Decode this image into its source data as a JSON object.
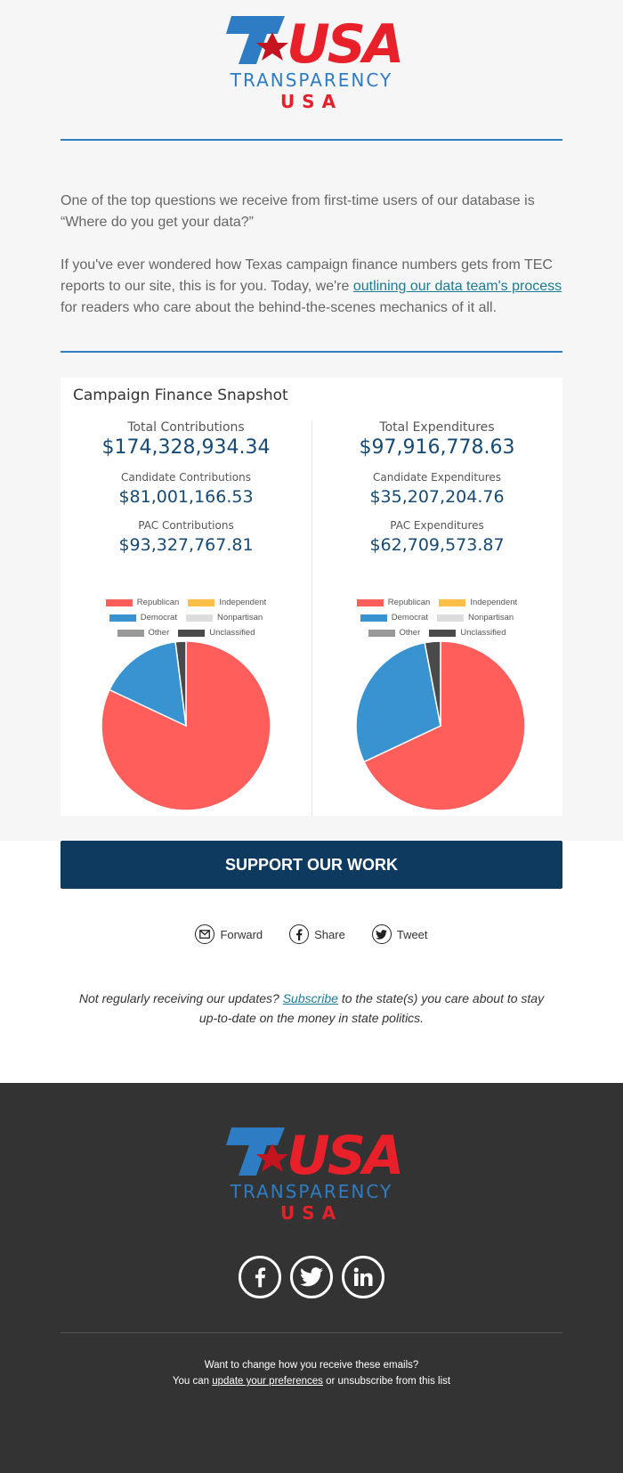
{
  "brand": {
    "line1": "TRANSPARENCY",
    "line2": "USA",
    "colors": {
      "blue": "#2e7cc4",
      "red": "#e8202a",
      "navy": "#0f3a5f"
    }
  },
  "intro": {
    "para1": "One of the top questions we receive from first-time users of our database is “Where do you get your data?”",
    "para2_before": "If you've ever wondered how Texas campaign finance numbers gets from TEC reports to our site, this is for you. Today, we're ",
    "para2_link": "outlining our data team's process",
    "para2_after": " for readers who care about the behind-the-scenes mechanics of it all."
  },
  "snapshot": {
    "title": "Campaign Finance Snapshot",
    "left": {
      "total_label": "Total Contributions",
      "total_value": "$174,328,934.34",
      "candidate_label": "Candidate Contributions",
      "candidate_value": "$81,001,166.53",
      "pac_label": "PAC Contributions",
      "pac_value": "$93,327,767.81"
    },
    "right": {
      "total_label": "Total Expenditures",
      "total_value": "$97,916,778.63",
      "candidate_label": "Candidate Expenditures",
      "candidate_value": "$35,207,204.76",
      "pac_label": "PAC Expenditures",
      "pac_value": "$62,709,573.87"
    },
    "legend": {
      "republican": "Republican",
      "independent": "Independent",
      "democrat": "Democrat",
      "nonpartisan": "Nonpartisan",
      "other": "Other",
      "unclassified": "Unclassified"
    },
    "legend_colors": {
      "republican": "#ff5e5b",
      "independent": "#ffbf47",
      "democrat": "#3a93d1",
      "nonpartisan": "#dddddd",
      "other": "#999999",
      "unclassified": "#4a4a4a"
    }
  },
  "chart_data": [
    {
      "type": "pie",
      "categories": [
        "Republican",
        "Democrat",
        "Unclassified"
      ],
      "values": [
        82,
        16,
        2
      ]
    },
    {
      "type": "pie",
      "categories": [
        "Republican",
        "Democrat",
        "Unclassified"
      ],
      "values": [
        68,
        29,
        3
      ]
    }
  ],
  "cta": {
    "support_label": "SUPPORT OUR WORK"
  },
  "share": {
    "forward": "Forward",
    "share": "Share",
    "tweet": "Tweet"
  },
  "subscribe": {
    "before": "Not regularly receiving our updates? ",
    "link": "Subscribe",
    "after": " to the state(s) you care about to stay up-to-date on the money in state politics."
  },
  "footer": {
    "line1": "Want to change how you receive these emails?",
    "line2_before": "You can ",
    "line2_link": "update your preferences",
    "line2_after": " or unsubscribe from this list",
    "social_icons": [
      "facebook-icon",
      "twitter-icon",
      "linkedin-icon"
    ]
  }
}
